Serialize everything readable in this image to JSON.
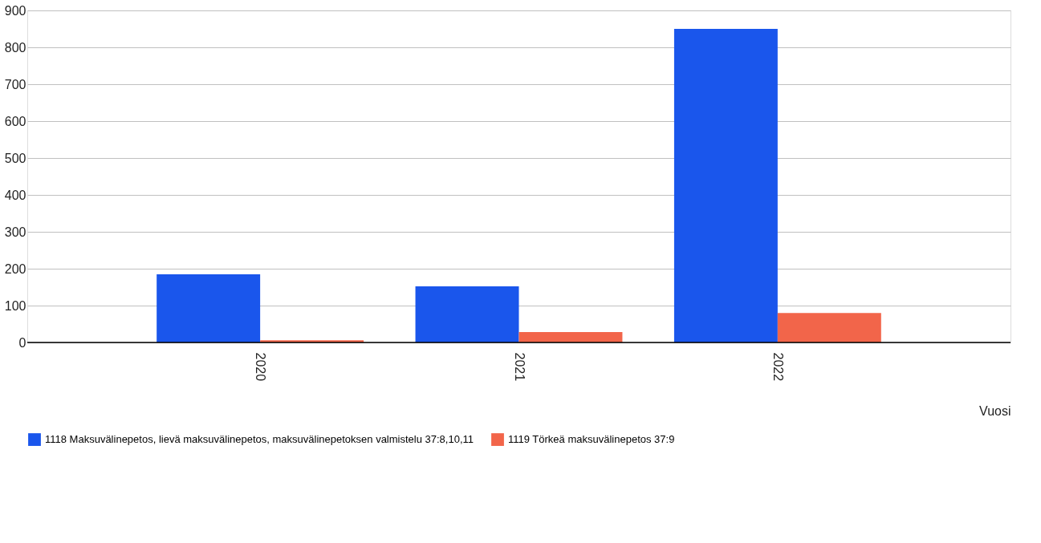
{
  "chart_data": {
    "type": "bar",
    "xlabel": "Vuosi",
    "categories": [
      "2020",
      "2021",
      "2022"
    ],
    "series": [
      {
        "name": "1118 Maksuvälinepetos, lievä maksuvälinepetos, maksuvälinepetoksen valmistelu 37:8,10,11",
        "color": "#1a56ec",
        "values": [
          185,
          152,
          850
        ]
      },
      {
        "name": "1119 Törkeä maksuvälinepetos 37:9",
        "color": "#f2654a",
        "values": [
          6,
          28,
          80
        ]
      }
    ],
    "ylim": [
      0,
      900
    ],
    "yticks": [
      0,
      100,
      200,
      300,
      400,
      500,
      600,
      700,
      800,
      900
    ],
    "grid": "y",
    "legend": "bottom"
  }
}
